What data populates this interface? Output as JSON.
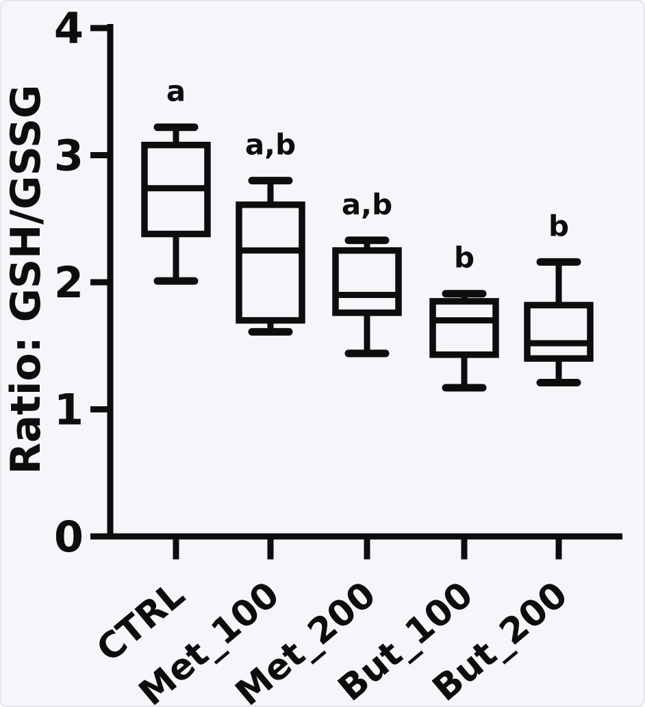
{
  "figure": {
    "background": "#f5f6f9",
    "ink": "#0d0d0d"
  },
  "chart_data": {
    "type": "box",
    "title": "",
    "xlabel": "",
    "ylabel": "Ratio: GSH/GSSG",
    "ylim": [
      0,
      4
    ],
    "yticks": [
      0,
      1,
      2,
      3,
      4
    ],
    "grid": false,
    "legend": "none",
    "categories": [
      "CTRL",
      "Met_100",
      "Met_200",
      "But_100",
      "But_200"
    ],
    "series": [
      {
        "name": "CTRL",
        "min": 2.01,
        "q1": 2.38,
        "median": 2.74,
        "q3": 3.08,
        "max": 3.22,
        "annotation": "a"
      },
      {
        "name": "Met_100",
        "min": 1.61,
        "q1": 1.7,
        "median": 2.25,
        "q3": 2.61,
        "max": 2.8,
        "annotation": "a,b"
      },
      {
        "name": "Met_200",
        "min": 1.44,
        "q1": 1.76,
        "median": 1.9,
        "q3": 2.25,
        "max": 2.33,
        "annotation": "a,b"
      },
      {
        "name": "But_100",
        "min": 1.17,
        "q1": 1.43,
        "median": 1.7,
        "q3": 1.85,
        "max": 1.91,
        "annotation": "b"
      },
      {
        "name": "But_200",
        "min": 1.21,
        "q1": 1.4,
        "median": 1.52,
        "q3": 1.82,
        "max": 2.16,
        "annotation": "b"
      }
    ]
  }
}
